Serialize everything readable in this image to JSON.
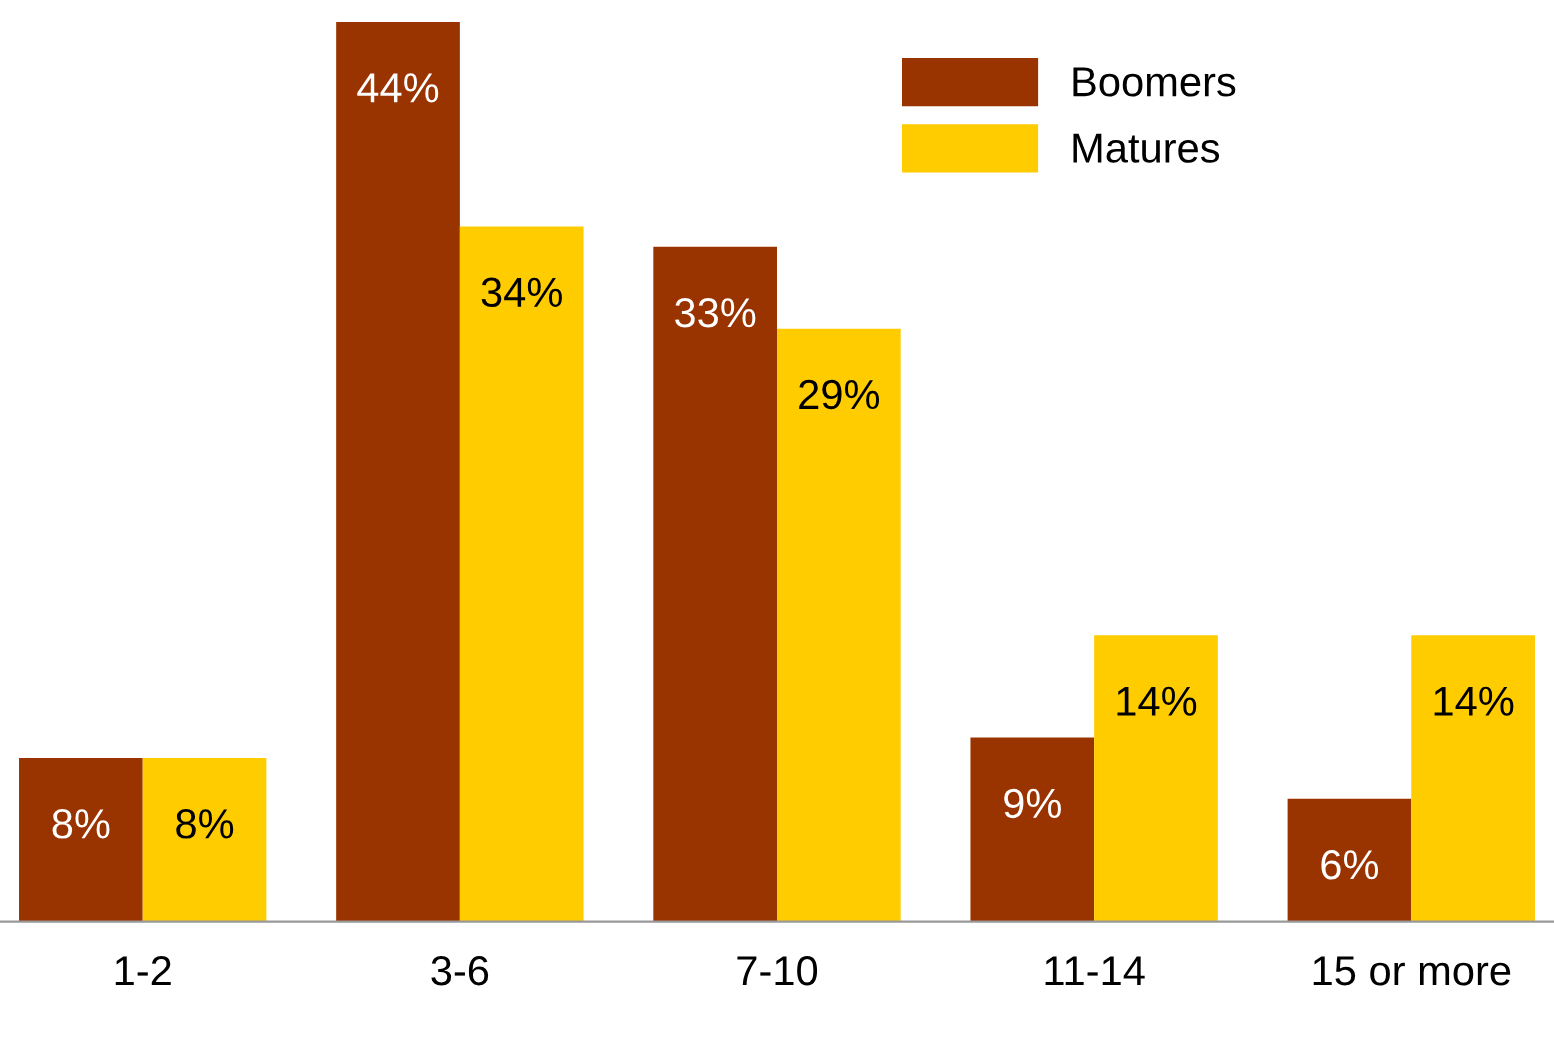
{
  "chart_data": {
    "type": "bar",
    "categories": [
      "1-2",
      "3-6",
      "7-10",
      "11-14",
      "15 or more"
    ],
    "series": [
      {
        "name": "Boomers",
        "color": "#993300",
        "values": [
          8,
          44,
          33,
          9,
          6
        ],
        "value_labels": [
          "8%",
          "44%",
          "33%",
          "9%",
          "6%"
        ]
      },
      {
        "name": "Matures",
        "color": "#ffcc00",
        "values": [
          8,
          34,
          29,
          14,
          14
        ],
        "value_labels": [
          "8%",
          "34%",
          "29%",
          "14%",
          "14%"
        ]
      }
    ],
    "legend": "top right",
    "grid": false,
    "tick_labels": "x"
  }
}
